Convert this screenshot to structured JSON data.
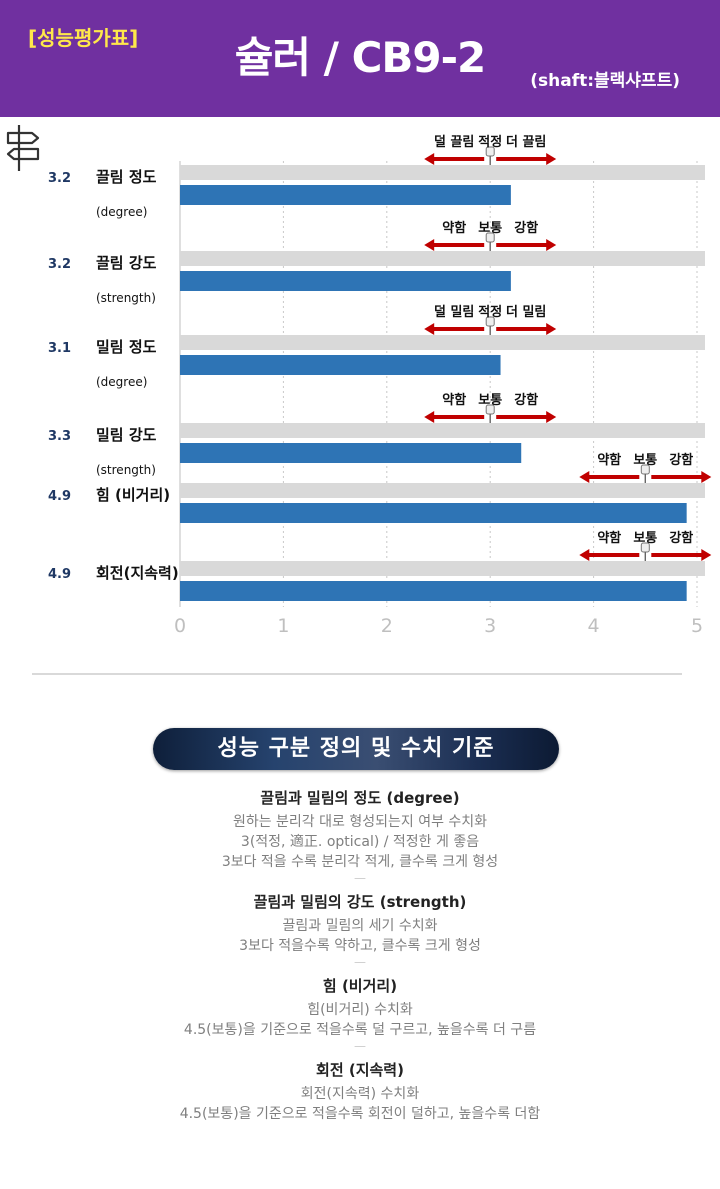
{
  "header": {
    "tag": "[성능평가표]",
    "title": "슐러 / CB9-2",
    "subtitle": "(shaft:블랙샤프트)"
  },
  "colors": {
    "header_bg": "#7030a0",
    "tag_text": "#ffe84a",
    "bar": "#2e74b5",
    "track": "#d9d9d9",
    "arrow": "#c00000",
    "score": "#1f3864",
    "axis_text": "#bfbfbf"
  },
  "icons": {
    "corner": "signpost-icon",
    "marker": "pushpin-icon"
  },
  "chart_data": {
    "type": "bar",
    "orientation": "horizontal",
    "categories": [
      "끌림 정도",
      "끌림 강도",
      "밀림 정도",
      "밀림 강도",
      "힘 (비거리)",
      "회전(지속력)"
    ],
    "sublabels": [
      "(degree)",
      "(strength)",
      "(degree)",
      "(strength)",
      "",
      ""
    ],
    "values": [
      3.2,
      3.2,
      3.1,
      3.3,
      4.9,
      4.9
    ],
    "value_labels": [
      "3.2",
      "3.2",
      "3.1",
      "3.3",
      "4.9",
      "4.9"
    ],
    "xlim": [
      0,
      5
    ],
    "xticks": [
      0,
      1,
      2,
      3,
      4,
      5
    ],
    "xtick_labels": [
      "0",
      "1",
      "2",
      "3",
      "4",
      "5"
    ],
    "grid": "vertical-dotted",
    "legends": [
      {
        "center": 3,
        "left": "덜 끌림",
        "mid": "적정",
        "right": "더 끌림"
      },
      {
        "center": 3,
        "left": "약함",
        "mid": "보통",
        "right": "강함"
      },
      {
        "center": 3,
        "left": "덜 밀림",
        "mid": "적정",
        "right": "더 밀림"
      },
      {
        "center": 3,
        "left": "약함",
        "mid": "보통",
        "right": "강함"
      },
      {
        "center": 4.5,
        "left": "약함",
        "mid": "보통",
        "right": "강함"
      },
      {
        "center": 4.5,
        "left": "약함",
        "mid": "보통",
        "right": "강함"
      }
    ]
  },
  "definitions": {
    "banner": "성능 구분 정의 및 수치 기준",
    "sections": [
      {
        "heading": "끌림과 밀림의 정도 (degree)",
        "lines": [
          "원하는 분리각 대로 형성되는지 여부 수치화",
          "3(적정, 適正. optical) / 적정한 게 좋음",
          "3보다 적을 수록 분리각 적게, 클수록 크게 형성"
        ]
      },
      {
        "heading": "끌림과 밀림의 강도 (strength)",
        "lines": [
          "끌림과 밀림의 세기 수치화",
          "3보다 적을수록 약하고, 클수록 크게 형성"
        ]
      },
      {
        "heading": "힘 (비거리)",
        "lines": [
          "힘(비거리) 수치화",
          "4.5(보통)을 기준으로 적을수록 덜 구르고, 높을수록 더 구름"
        ]
      },
      {
        "heading": "회전 (지속력)",
        "lines": [
          "회전(지속력) 수치화",
          "4.5(보통)을 기준으로 적을수록 회전이 덜하고, 높을수록 더함"
        ]
      }
    ]
  }
}
